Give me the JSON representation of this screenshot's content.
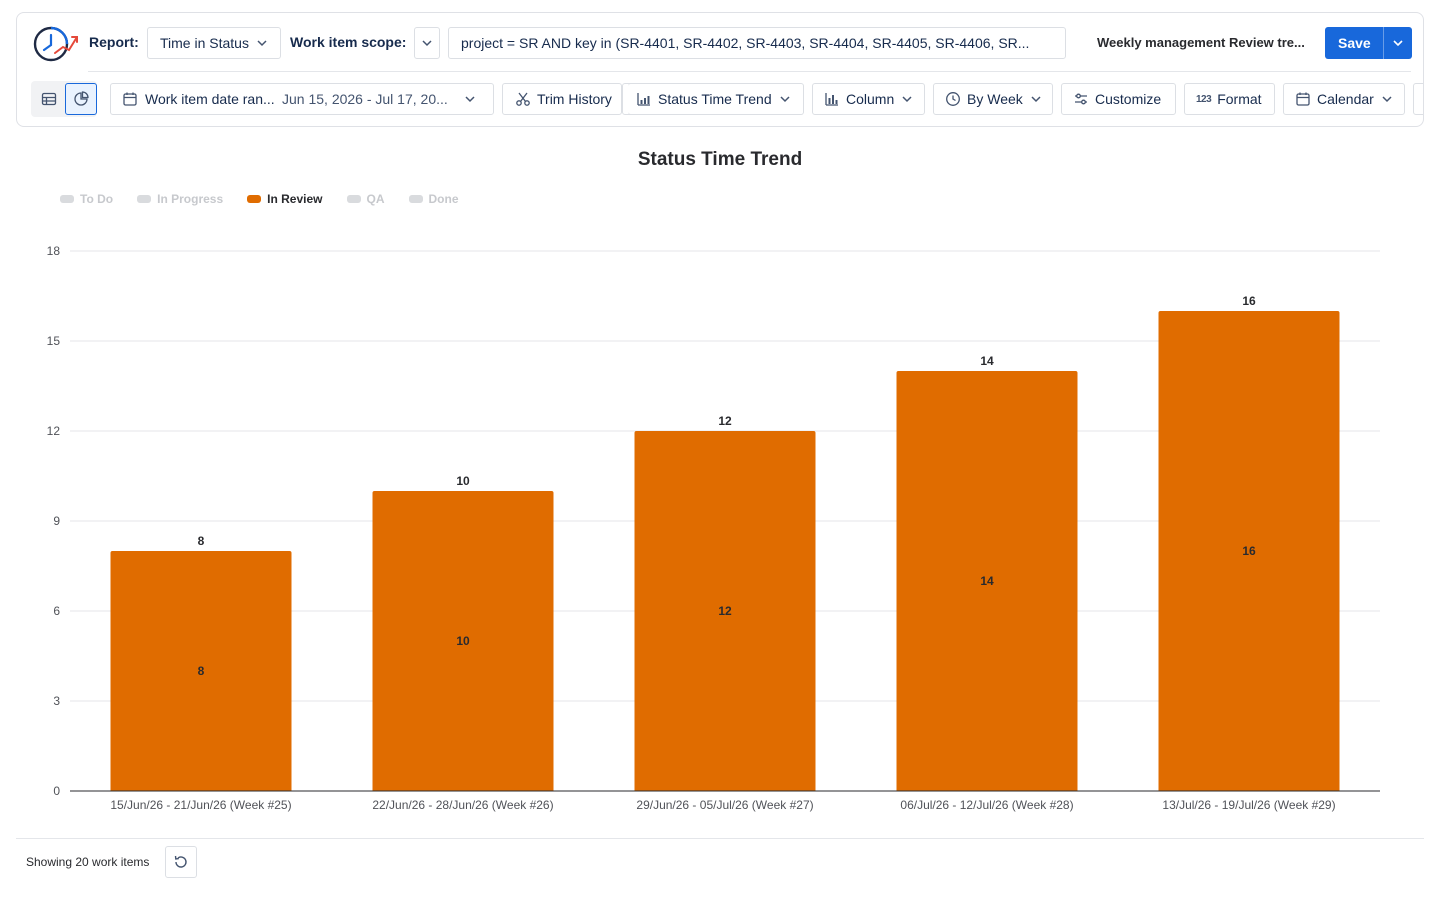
{
  "header": {
    "report_label": "Report:",
    "report_value": "Time in Status",
    "scope_label": "Work item scope:",
    "scope_query": "project = SR AND key in (SR-4401, SR-4402, SR-4403, SR-4404, SR-4405, SR-4406, SR...",
    "report_name": "Weekly management Review tre...",
    "save_label": "Save"
  },
  "toolbar": {
    "date_range_label": "Work item date ran...",
    "date_range_value": "Jun 15, 2026 - Jul 17, 20...",
    "trim_history": "Trim History",
    "chart_view": "Status Time Trend",
    "chart_type": "Column",
    "grouping": "By Week",
    "customize": "Customize",
    "format": "Format",
    "calendar": "Calendar"
  },
  "legend": [
    {
      "label": "To Do",
      "active": false
    },
    {
      "label": "In Progress",
      "active": false
    },
    {
      "label": "In Review",
      "active": true
    },
    {
      "label": "QA",
      "active": false
    },
    {
      "label": "Done",
      "active": false
    }
  ],
  "chart_data": {
    "type": "bar",
    "title": "Status Time Trend",
    "categories": [
      "15/Jun/26 - 21/Jun/26 (Week #25)",
      "22/Jun/26 - 28/Jun/26 (Week #26)",
      "29/Jun/26 - 05/Jul/26 (Week #27)",
      "06/Jul/26 - 12/Jul/26 (Week #28)",
      "13/Jul/26 - 19/Jul/26 (Week #29)"
    ],
    "series": [
      {
        "name": "In Review",
        "values": [
          8,
          10,
          12,
          14,
          16
        ],
        "color": "#e06c00"
      }
    ],
    "yticks": [
      0,
      3,
      6,
      9,
      12,
      15,
      18
    ],
    "ylim": [
      0,
      18
    ],
    "grid": true,
    "legend_position": "top-left"
  },
  "footer": {
    "showing_text": "Showing 20 work items"
  },
  "colors": {
    "accent": "#1868db",
    "bar": "#e06c00"
  }
}
